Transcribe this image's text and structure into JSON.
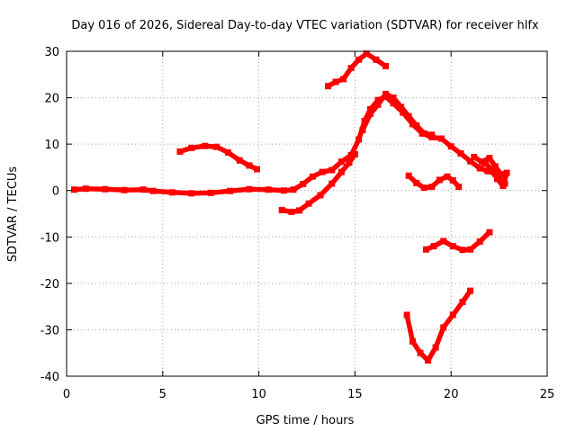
{
  "chart_data": {
    "type": "scatter",
    "title": "Day 016 of 2026, Sidereal Day-to-day VTEC variation (SDTVAR) for receiver hlfx",
    "xlabel": "GPS time / hours",
    "ylabel": "SDTVAR / TECUs",
    "xlim": [
      0,
      25
    ],
    "ylim": [
      -40,
      30
    ],
    "xticks": [
      0,
      5,
      10,
      15,
      20,
      25
    ],
    "yticks": [
      -40,
      -30,
      -20,
      -10,
      0,
      10,
      20,
      30
    ],
    "xtick_labels": [
      "0",
      "5",
      "10",
      "15",
      "20",
      "25"
    ],
    "ytick_labels": [
      "-40",
      "-30",
      "-20",
      "-10",
      "0",
      "10",
      "20",
      "30"
    ],
    "grid": true,
    "legend": "none",
    "series_color": "#ff0000",
    "series": [
      {
        "name": "track-a",
        "points": [
          [
            0.4,
            0.2
          ],
          [
            1.0,
            0.4
          ],
          [
            2.0,
            0.3
          ],
          [
            3.0,
            0.1
          ],
          [
            4.0,
            0.2
          ],
          [
            4.5,
            -0.1
          ],
          [
            5.5,
            -0.4
          ],
          [
            6.5,
            -0.6
          ],
          [
            7.5,
            -0.5
          ],
          [
            8.5,
            -0.1
          ],
          [
            9.5,
            0.3
          ],
          [
            10.5,
            0.2
          ],
          [
            11.3,
            0.0
          ],
          [
            11.8,
            0.2
          ],
          [
            12.3,
            1.4
          ],
          [
            12.8,
            3.0
          ],
          [
            13.3,
            4.0
          ],
          [
            13.8,
            4.4
          ],
          [
            14.3,
            6.2
          ],
          [
            14.8,
            7.6
          ],
          [
            15.2,
            11.0
          ],
          [
            15.5,
            15.0
          ],
          [
            15.8,
            17.5
          ],
          [
            16.2,
            19.5
          ],
          [
            16.6,
            20.2
          ],
          [
            17.0,
            18.8
          ],
          [
            17.5,
            16.8
          ],
          [
            18.0,
            14.3
          ],
          [
            18.5,
            12.3
          ],
          [
            19.0,
            11.5
          ],
          [
            19.5,
            11.2
          ],
          [
            20.0,
            9.5
          ],
          [
            20.5,
            8.0
          ],
          [
            21.0,
            6.3
          ],
          [
            21.5,
            4.8
          ],
          [
            21.9,
            4.2
          ],
          [
            22.3,
            3.6
          ],
          [
            22.8,
            1.5
          ]
        ]
      },
      {
        "name": "track-b",
        "points": [
          [
            5.9,
            8.4
          ],
          [
            6.5,
            9.2
          ],
          [
            7.2,
            9.6
          ],
          [
            7.8,
            9.4
          ],
          [
            8.4,
            8.2
          ],
          [
            9.0,
            6.5
          ],
          [
            9.5,
            5.4
          ],
          [
            9.9,
            4.6
          ]
        ]
      },
      {
        "name": "track-c",
        "points": [
          [
            11.2,
            -4.2
          ],
          [
            11.7,
            -4.6
          ],
          [
            12.1,
            -4.3
          ],
          [
            12.6,
            -2.8
          ],
          [
            13.2,
            -1.0
          ],
          [
            13.8,
            1.5
          ],
          [
            14.3,
            4.0
          ],
          [
            14.7,
            6.0
          ],
          [
            15.0,
            7.8
          ]
        ]
      },
      {
        "name": "track-d",
        "points": [
          [
            13.6,
            22.5
          ],
          [
            14.0,
            23.4
          ],
          [
            14.4,
            24.0
          ],
          [
            14.8,
            26.4
          ],
          [
            15.2,
            28.2
          ],
          [
            15.6,
            29.5
          ],
          [
            16.1,
            28.2
          ],
          [
            16.6,
            26.8
          ]
        ]
      },
      {
        "name": "track-e",
        "points": [
          [
            15.4,
            13.0
          ],
          [
            15.8,
            16.5
          ],
          [
            16.2,
            18.5
          ],
          [
            16.6,
            20.8
          ],
          [
            17.0,
            20.0
          ],
          [
            17.4,
            18.0
          ],
          [
            17.8,
            16.0
          ],
          [
            18.2,
            14.0
          ],
          [
            18.6,
            12.3
          ],
          [
            19.0,
            12.0
          ]
        ]
      },
      {
        "name": "track-f",
        "points": [
          [
            17.8,
            3.2
          ],
          [
            18.2,
            1.6
          ],
          [
            18.6,
            0.6
          ],
          [
            19.0,
            0.8
          ],
          [
            19.4,
            2.3
          ],
          [
            19.8,
            3.0
          ],
          [
            20.1,
            2.2
          ],
          [
            20.4,
            0.8
          ]
        ]
      },
      {
        "name": "track-g",
        "points": [
          [
            18.7,
            -12.7
          ],
          [
            19.1,
            -12.0
          ],
          [
            19.6,
            -10.9
          ],
          [
            20.1,
            -12.0
          ],
          [
            20.6,
            -12.8
          ],
          [
            21.0,
            -12.7
          ],
          [
            21.5,
            -11.0
          ],
          [
            22.0,
            -9.0
          ]
        ]
      },
      {
        "name": "track-h",
        "points": [
          [
            17.7,
            -26.8
          ],
          [
            18.0,
            -32.5
          ],
          [
            18.4,
            -35.0
          ],
          [
            18.8,
            -36.6
          ],
          [
            19.2,
            -33.8
          ],
          [
            19.6,
            -29.5
          ],
          [
            20.1,
            -26.8
          ],
          [
            20.6,
            -24.0
          ],
          [
            21.0,
            -21.6
          ]
        ]
      },
      {
        "name": "track-i",
        "points": [
          [
            21.2,
            7.2
          ],
          [
            21.6,
            6.2
          ],
          [
            22.0,
            7.0
          ],
          [
            22.3,
            5.2
          ],
          [
            22.6,
            3.5
          ],
          [
            22.9,
            3.8
          ],
          [
            22.7,
            1.0
          ],
          [
            22.4,
            2.5
          ],
          [
            22.1,
            4.6
          ],
          [
            21.8,
            5.8
          ]
        ]
      }
    ]
  }
}
